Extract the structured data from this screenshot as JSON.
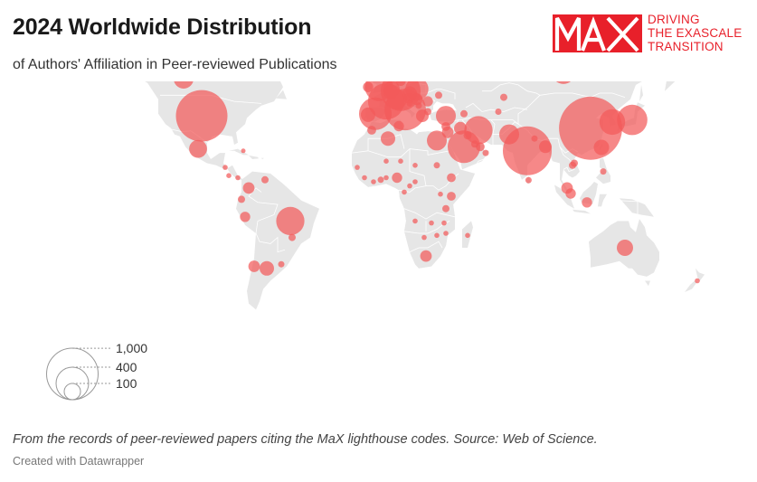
{
  "header": {
    "title": "2024 Worldwide Distribution",
    "subtitle": "of Authors' Affiliation in Peer-reviewed Publications"
  },
  "logo": {
    "mark": "MaX",
    "tagline": [
      "DRIVING",
      "THE EXASCALE",
      "TRANSITION"
    ],
    "color": "#e8202a"
  },
  "legend": {
    "items": [
      {
        "label": "1,000",
        "value": 1000
      },
      {
        "label": "400",
        "value": 400
      },
      {
        "label": "100",
        "value": 100
      }
    ]
  },
  "footer": {
    "note": "From the records of peer-reviewed papers citing the MaX lighthouse codes. Source: Web of Science.",
    "credit": "Created with Datawrapper"
  },
  "style": {
    "bubble_color": "#f25a5a",
    "land_color": "#e6e6e6"
  },
  "chart_data": {
    "type": "bubble-map",
    "points": [
      {
        "lon": -100,
        "lat": 39,
        "value": 1000
      },
      {
        "lon": -110,
        "lat": 57,
        "value": 150
      },
      {
        "lon": -102,
        "lat": 23,
        "value": 120
      },
      {
        "lon": -77,
        "lat": 22,
        "value": 8
      },
      {
        "lon": 115,
        "lat": 33,
        "value": 1500
      },
      {
        "lon": 80,
        "lat": 22,
        "value": 900
      },
      {
        "lon": 127,
        "lat": 36,
        "value": 250
      },
      {
        "lon": 138,
        "lat": 37,
        "value": 350
      },
      {
        "lon": 100,
        "lat": 60,
        "value": 200
      },
      {
        "lon": 121,
        "lat": 23.7,
        "value": 90
      },
      {
        "lon": 122,
        "lat": 12,
        "value": 15
      },
      {
        "lon": 102,
        "lat": 4,
        "value": 50
      },
      {
        "lon": 104,
        "lat": 1.3,
        "value": 40
      },
      {
        "lon": 113,
        "lat": -3,
        "value": 40
      },
      {
        "lon": 105,
        "lat": 15,
        "value": 20
      },
      {
        "lon": 106,
        "lat": 16,
        "value": 20
      },
      {
        "lon": 134,
        "lat": -25,
        "value": 100
      },
      {
        "lon": 174,
        "lat": -41,
        "value": 10
      },
      {
        "lon": 2,
        "lat": 46,
        "value": 500
      },
      {
        "lon": -4,
        "lat": 40,
        "value": 400
      },
      {
        "lon": 10,
        "lat": 51,
        "value": 600
      },
      {
        "lon": 12.5,
        "lat": 42,
        "value": 650
      },
      {
        "lon": -2,
        "lat": 53,
        "value": 300
      },
      {
        "lon": 19,
        "lat": 52,
        "value": 200
      },
      {
        "lon": 8,
        "lat": 47,
        "value": 150
      },
      {
        "lon": 5,
        "lat": 52,
        "value": 100
      },
      {
        "lon": 4.5,
        "lat": 50.6,
        "value": 80
      },
      {
        "lon": 15,
        "lat": 62,
        "value": 150
      },
      {
        "lon": 26,
        "lat": 64,
        "value": 50
      },
      {
        "lon": 10,
        "lat": 56,
        "value": 40
      },
      {
        "lon": 15,
        "lat": 49.8,
        "value": 80
      },
      {
        "lon": 14.5,
        "lat": 47.5,
        "value": 40
      },
      {
        "lon": 19,
        "lat": 47,
        "value": 50
      },
      {
        "lon": 25,
        "lat": 46,
        "value": 40
      },
      {
        "lon": 22,
        "lat": 39,
        "value": 60
      },
      {
        "lon": 35,
        "lat": 39,
        "value": 150
      },
      {
        "lon": -8,
        "lat": 39.5,
        "value": 80
      },
      {
        "lon": -8,
        "lat": 53,
        "value": 40
      },
      {
        "lon": 10,
        "lat": 62,
        "value": 30
      },
      {
        "lon": -19,
        "lat": 65,
        "value": 10
      },
      {
        "lon": 25,
        "lat": 41,
        "value": 20
      },
      {
        "lon": 20,
        "lat": 44,
        "value": 15
      },
      {
        "lon": 15,
        "lat": 45,
        "value": 15
      },
      {
        "lon": 31,
        "lat": 49,
        "value": 20
      },
      {
        "lon": 53,
        "lat": 32,
        "value": 300
      },
      {
        "lon": 45,
        "lat": 24,
        "value": 400
      },
      {
        "lon": 30,
        "lat": 27,
        "value": 150
      },
      {
        "lon": 70,
        "lat": 30,
        "value": 150
      },
      {
        "lon": 3,
        "lat": 28,
        "value": 80
      },
      {
        "lon": 9,
        "lat": 34,
        "value": 40
      },
      {
        "lon": -6,
        "lat": 32,
        "value": 30
      },
      {
        "lon": 43,
        "lat": 33,
        "value": 60
      },
      {
        "lon": 36,
        "lat": 31,
        "value": 50
      },
      {
        "lon": 35,
        "lat": 33.8,
        "value": 30
      },
      {
        "lon": 47,
        "lat": 29.5,
        "value": 25
      },
      {
        "lon": 51,
        "lat": 25.3,
        "value": 20
      },
      {
        "lon": 54,
        "lat": 24,
        "value": 30
      },
      {
        "lon": 57,
        "lat": 21,
        "value": 15
      },
      {
        "lon": 90,
        "lat": 24,
        "value": 60
      },
      {
        "lon": 84,
        "lat": 28,
        "value": 15
      },
      {
        "lon": 80.7,
        "lat": 7.8,
        "value": 15
      },
      {
        "lon": 67,
        "lat": 48,
        "value": 20
      },
      {
        "lon": 64,
        "lat": 41,
        "value": 15
      },
      {
        "lon": 45,
        "lat": 40,
        "value": 20
      },
      {
        "lon": 8,
        "lat": 9,
        "value": 40
      },
      {
        "lon": 38,
        "lat": 9,
        "value": 30
      },
      {
        "lon": 38,
        "lat": 0,
        "value": 30
      },
      {
        "lon": 35,
        "lat": -6,
        "value": 20
      },
      {
        "lon": 24,
        "lat": -29,
        "value": 50
      },
      {
        "lon": 18,
        "lat": 7,
        "value": 10
      },
      {
        "lon": 15,
        "lat": 5,
        "value": 10
      },
      {
        "lon": 12,
        "lat": 2,
        "value": 10
      },
      {
        "lon": 18,
        "lat": -12,
        "value": 10
      },
      {
        "lon": 27,
        "lat": -13,
        "value": 10
      },
      {
        "lon": 32,
        "lat": 1,
        "value": 10
      },
      {
        "lon": 30,
        "lat": 15,
        "value": 15
      },
      {
        "lon": 30,
        "lat": -19,
        "value": 10
      },
      {
        "lon": 34,
        "lat": -13,
        "value": 10
      },
      {
        "lon": 35,
        "lat": -18,
        "value": 10
      },
      {
        "lon": 23,
        "lat": -20,
        "value": 10
      },
      {
        "lon": 47,
        "lat": -19,
        "value": 10
      },
      {
        "lon": -1,
        "lat": 8,
        "value": 15
      },
      {
        "lon": -5,
        "lat": 7,
        "value": 10
      },
      {
        "lon": -10,
        "lat": 9,
        "value": 10
      },
      {
        "lon": -14,
        "lat": 14,
        "value": 10
      },
      {
        "lon": 2,
        "lat": 9,
        "value": 10
      },
      {
        "lon": 2,
        "lat": 17,
        "value": 10
      },
      {
        "lon": 10,
        "lat": 17,
        "value": 10
      },
      {
        "lon": 18,
        "lat": 15,
        "value": 10
      },
      {
        "lon": -51,
        "lat": -12,
        "value": 300
      },
      {
        "lon": -74,
        "lat": 4,
        "value": 50
      },
      {
        "lon": -65,
        "lat": 8,
        "value": 20
      },
      {
        "lon": -78,
        "lat": -1.5,
        "value": 20
      },
      {
        "lon": -76,
        "lat": -10,
        "value": 40
      },
      {
        "lon": -64,
        "lat": -35,
        "value": 80
      },
      {
        "lon": -71,
        "lat": -34,
        "value": 50
      },
      {
        "lon": -56,
        "lat": -33,
        "value": 15
      },
      {
        "lon": -50,
        "lat": -20,
        "value": 20
      },
      {
        "lon": -80,
        "lat": 9,
        "value": 10
      },
      {
        "lon": -85,
        "lat": 10,
        "value": 10
      },
      {
        "lon": -87,
        "lat": 14,
        "value": 10
      }
    ]
  }
}
